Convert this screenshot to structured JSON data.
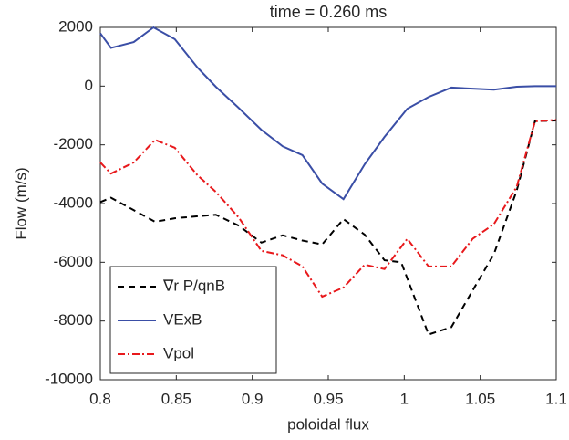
{
  "chart_data": {
    "type": "line",
    "title": "time = 0.260 ms",
    "x_label": "poloidal flux",
    "y_label": "Flow (m/s)",
    "xlim": [
      0.8,
      1.1
    ],
    "xticks": [
      0.8,
      0.85,
      0.9,
      0.95,
      1,
      1.05,
      1.1
    ],
    "ylim": [
      -10000,
      2000
    ],
    "yticks": [
      -10000,
      -8000,
      -6000,
      -4000,
      -2000,
      0,
      2000
    ],
    "grid": false,
    "legend": "lower left",
    "series": [
      {
        "name": "∇r P/qnB",
        "color": "#000000",
        "style": "dashed",
        "x": [
          0.8,
          0.807,
          0.836,
          0.849,
          0.876,
          0.891,
          0.906,
          0.92,
          0.933,
          0.946,
          0.96,
          0.974,
          0.987,
          0.998,
          1.016,
          1.031,
          1.045,
          1.059,
          1.074,
          1.086,
          1.1
        ],
        "values": [
          -3950,
          -3800,
          -4620,
          -4500,
          -4380,
          -4750,
          -5330,
          -5080,
          -5260,
          -5390,
          -4530,
          -5060,
          -5930,
          -6000,
          -8460,
          -8210,
          -6960,
          -5720,
          -3560,
          -1200,
          -1170
        ]
      },
      {
        "name": "VExB",
        "color": "#3a4ea6",
        "style": "solid",
        "x": [
          0.8,
          0.807,
          0.822,
          0.835,
          0.849,
          0.864,
          0.876,
          0.891,
          0.906,
          0.92,
          0.933,
          0.946,
          0.96,
          0.974,
          0.987,
          1.002,
          1.016,
          1.031,
          1.059,
          1.074,
          1.086,
          1.1
        ],
        "values": [
          1800,
          1300,
          1500,
          2000,
          1600,
          630,
          -20,
          -740,
          -1490,
          -2050,
          -2350,
          -3320,
          -3850,
          -2660,
          -1730,
          -770,
          -370,
          -50,
          -120,
          -20,
          0,
          0
        ]
      },
      {
        "name": "Vpol",
        "color": "#e8191c",
        "style": "dashdot",
        "x": [
          0.8,
          0.807,
          0.822,
          0.836,
          0.849,
          0.864,
          0.876,
          0.891,
          0.906,
          0.92,
          0.933,
          0.946,
          0.96,
          0.974,
          0.987,
          1.002,
          1.016,
          1.031,
          1.045,
          1.059,
          1.074,
          1.086,
          1.1
        ],
        "values": [
          -2600,
          -2980,
          -2600,
          -1830,
          -2100,
          -3040,
          -3600,
          -4470,
          -5610,
          -5760,
          -6140,
          -7170,
          -6860,
          -6080,
          -6230,
          -5200,
          -6140,
          -6140,
          -5200,
          -4700,
          -3430,
          -1200,
          -1150
        ]
      }
    ]
  }
}
